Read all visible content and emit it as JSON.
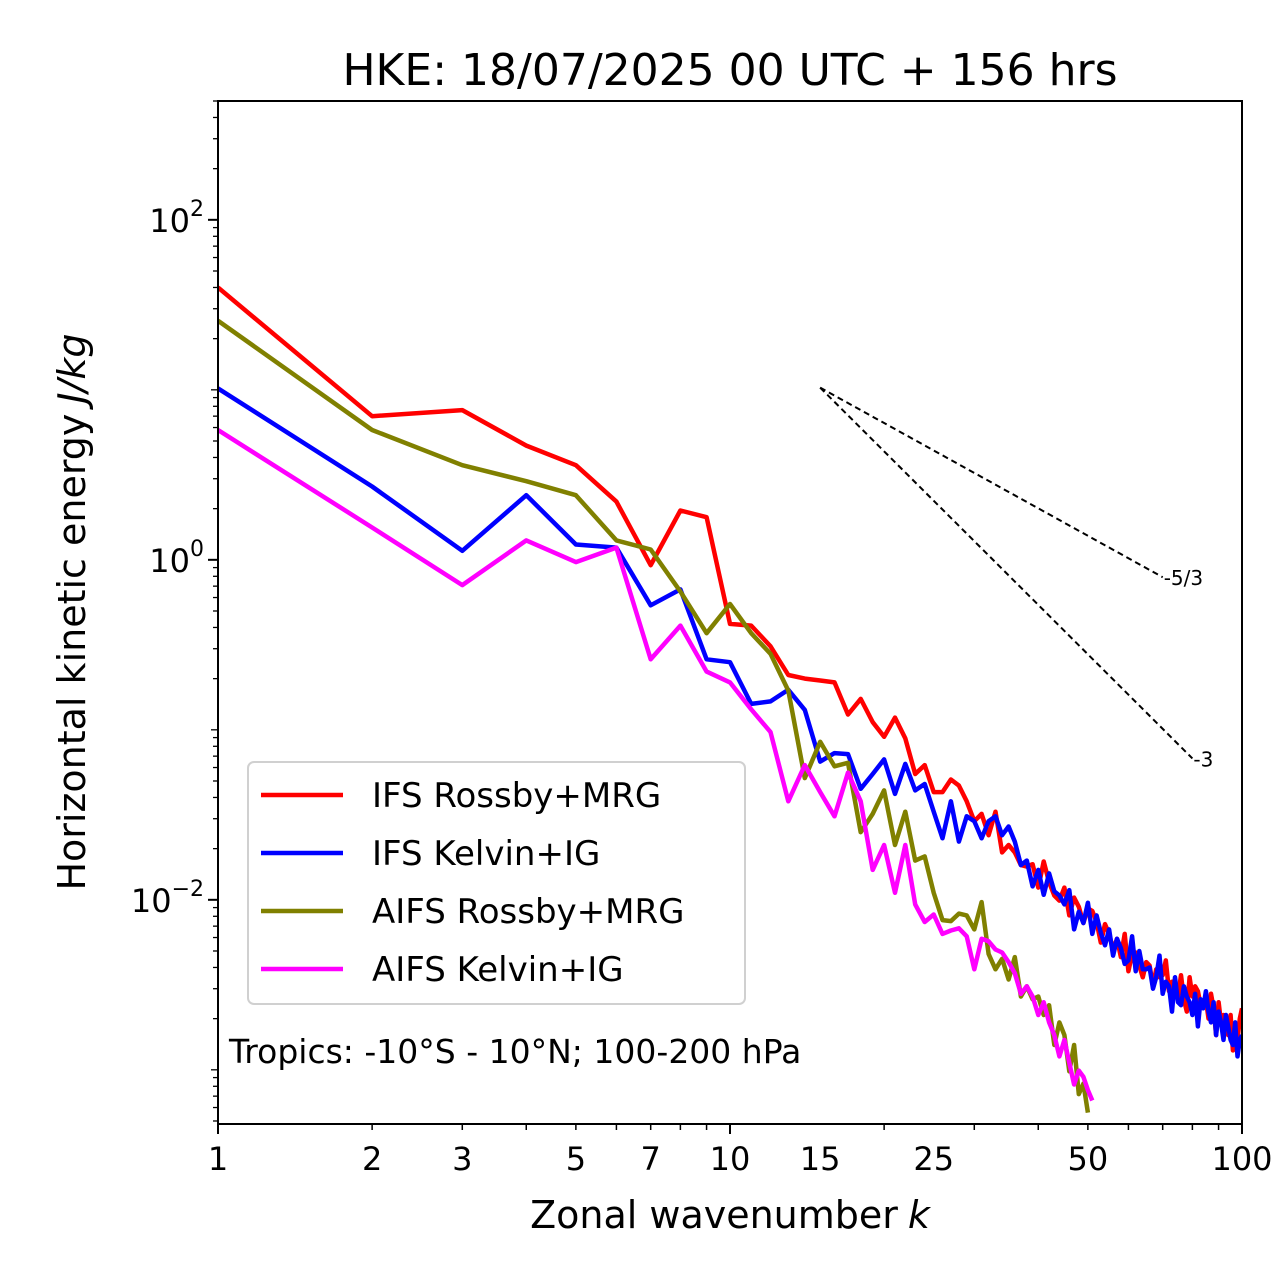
{
  "chart_data": {
    "type": "line",
    "title": "HKE: 18/07/2025 00 UTC + 156 hrs",
    "xlabel": "Zonal wavenumber",
    "xlabel_var": "k",
    "ylabel": "Horizontal kinetic energy",
    "ylabel_units": "J/kg",
    "xscale": "log",
    "yscale": "log",
    "xlim": [
      1,
      100
    ],
    "ylim": [
      0.00048,
      500
    ],
    "x_ticks": [
      {
        "value": 1,
        "label": "1"
      },
      {
        "value": 2,
        "label": "2"
      },
      {
        "value": 3,
        "label": "3"
      },
      {
        "value": 5,
        "label": "5"
      },
      {
        "value": 7,
        "label": "7"
      },
      {
        "value": 10,
        "label": "10"
      },
      {
        "value": 15,
        "label": "15"
      },
      {
        "value": 25,
        "label": "25"
      },
      {
        "value": 50,
        "label": "50"
      },
      {
        "value": 100,
        "label": "100"
      }
    ],
    "y_ticks": [
      {
        "value": 100,
        "mantissa": "10",
        "exp": "2"
      },
      {
        "value": 1,
        "mantissa": "10",
        "exp": "0"
      },
      {
        "value": 0.01,
        "mantissa": "10",
        "exp": "−2"
      }
    ],
    "grid": false,
    "legend_position": "lower-left",
    "annotation": "Tropics: -10°S - 10°N; 100-200 hPa",
    "reference_slopes": [
      {
        "label": "-5/3",
        "slope": -1.6667,
        "x_start": 15,
        "x_end": 70,
        "y_start": 10.3
      },
      {
        "label": "-3",
        "slope": -3,
        "x_start": 15,
        "x_end": 80,
        "y_start": 10.3
      }
    ],
    "series": [
      {
        "name": "IFS Rossby+MRG",
        "color": "#ff0000",
        "x": [
          1,
          2,
          3,
          4,
          5,
          6,
          7,
          8,
          9,
          10,
          11,
          12,
          13,
          14,
          15,
          16,
          17,
          18,
          19,
          20,
          21,
          22,
          23,
          24,
          25,
          26,
          27,
          28,
          29,
          30,
          31,
          32,
          33,
          34,
          35,
          36,
          37,
          38,
          39,
          40,
          41,
          42,
          43,
          44,
          45,
          46,
          47,
          48,
          49,
          50,
          51,
          52,
          53,
          54,
          55,
          56,
          57,
          58,
          59,
          60,
          61,
          62,
          63,
          64,
          65,
          66,
          67,
          68,
          69,
          70,
          71,
          72,
          73,
          74,
          75,
          76,
          77,
          78,
          79,
          80,
          81,
          82,
          83,
          84,
          85,
          86,
          87,
          88,
          89,
          90,
          91,
          92,
          93,
          94,
          95,
          96,
          97,
          98,
          99,
          100
        ],
        "values": [
          40,
          7,
          7.6,
          4.7,
          3.6,
          2.2,
          0.93,
          1.95,
          1.78,
          0.42,
          0.41,
          0.31,
          0.21,
          0.2,
          0.195,
          0.19,
          0.123,
          0.152,
          0.111,
          0.091,
          0.118,
          0.089,
          0.055,
          0.062,
          0.043,
          0.043,
          0.051,
          0.047,
          0.038,
          0.029,
          0.032,
          0.024,
          0.033,
          0.019,
          0.021,
          0.019,
          0.016,
          0.0157,
          0.0162,
          0.0118,
          0.0168,
          0.0127,
          0.0106,
          0.0099,
          0.0118,
          0.0081,
          0.0103,
          0.0091,
          0.0073,
          0.0089,
          0.0086,
          0.0074,
          0.0056,
          0.0072,
          0.0063,
          0.0051,
          0.0059,
          0.0046,
          0.0063,
          0.0038,
          0.0048,
          0.0049,
          0.0041,
          0.0035,
          0.0043,
          0.0041,
          0.0031,
          0.0039,
          0.0035,
          0.0036,
          0.0044,
          0.0029,
          0.0033,
          0.0033,
          0.0027,
          0.0036,
          0.0026,
          0.0022,
          0.0035,
          0.0027,
          0.0031,
          0.0029,
          0.0024,
          0.0024,
          0.0026,
          0.002,
          0.0028,
          0.0023,
          0.0016,
          0.0025,
          0.0019,
          0.0021,
          0.002,
          0.0016,
          0.0021,
          0.0013,
          0.0018,
          0.0015,
          0.002,
          0.0023
        ]
      },
      {
        "name": "IFS Kelvin+IG",
        "color": "#0000ff",
        "x": [
          1,
          2,
          3,
          4,
          5,
          6,
          7,
          8,
          9,
          10,
          11,
          12,
          13,
          14,
          15,
          16,
          17,
          18,
          19,
          20,
          21,
          22,
          23,
          24,
          25,
          26,
          27,
          28,
          29,
          30,
          31,
          32,
          33,
          34,
          35,
          36,
          37,
          38,
          39,
          40,
          41,
          42,
          43,
          44,
          45,
          46,
          47,
          48,
          49,
          50,
          51,
          52,
          53,
          54,
          55,
          56,
          57,
          58,
          59,
          60,
          61,
          62,
          63,
          64,
          65,
          66,
          67,
          68,
          69,
          70,
          71,
          72,
          73,
          74,
          75,
          76,
          77,
          78,
          79,
          80,
          81,
          82,
          83,
          84,
          85,
          86,
          87,
          88,
          89,
          90,
          91,
          92,
          93,
          94,
          95,
          96,
          97,
          98,
          99,
          100
        ],
        "values": [
          10.2,
          2.7,
          1.13,
          2.4,
          1.23,
          1.18,
          0.54,
          0.67,
          0.26,
          0.25,
          0.142,
          0.147,
          0.172,
          0.131,
          0.065,
          0.073,
          0.072,
          0.045,
          0.055,
          0.067,
          0.042,
          0.063,
          0.044,
          0.048,
          0.033,
          0.023,
          0.038,
          0.022,
          0.031,
          0.029,
          0.023,
          0.029,
          0.031,
          0.024,
          0.027,
          0.022,
          0.016,
          0.017,
          0.012,
          0.015,
          0.0107,
          0.0143,
          0.0112,
          0.0106,
          0.0094,
          0.0114,
          0.0067,
          0.0085,
          0.0073,
          0.0096,
          0.0063,
          0.0081,
          0.0064,
          0.0054,
          0.0067,
          0.0047,
          0.0059,
          0.0052,
          0.0042,
          0.0044,
          0.0061,
          0.0038,
          0.005,
          0.0039,
          0.0039,
          0.004,
          0.003,
          0.0035,
          0.0047,
          0.0028,
          0.0033,
          0.0031,
          0.0022,
          0.0035,
          0.0025,
          0.0024,
          0.0031,
          0.0027,
          0.0025,
          0.0021,
          0.0028,
          0.0018,
          0.0026,
          0.0023,
          0.0029,
          0.0022,
          0.0019,
          0.0025,
          0.0016,
          0.0022,
          0.0019,
          0.0015,
          0.0021,
          0.0018,
          0.0015,
          0.0014,
          0.0019,
          0.0012,
          0.0015,
          0.0016
        ]
      },
      {
        "name": "AIFS Rossby+MRG",
        "color": "#808000",
        "x": [
          1,
          2,
          3,
          4,
          5,
          6,
          7,
          8,
          9,
          10,
          11,
          12,
          13,
          14,
          15,
          16,
          17,
          18,
          19,
          20,
          21,
          22,
          23,
          24,
          25,
          26,
          27,
          28,
          29,
          30,
          31,
          32,
          33,
          34,
          35,
          36,
          37,
          38,
          39,
          40,
          41,
          42,
          43,
          44,
          45,
          46,
          47,
          48,
          49,
          50
        ],
        "values": [
          25.5,
          5.8,
          3.6,
          2.9,
          2.4,
          1.3,
          1.15,
          0.65,
          0.37,
          0.55,
          0.37,
          0.28,
          0.17,
          0.052,
          0.085,
          0.061,
          0.064,
          0.025,
          0.032,
          0.044,
          0.021,
          0.033,
          0.017,
          0.018,
          0.011,
          0.0076,
          0.0075,
          0.0083,
          0.0081,
          0.0067,
          0.0097,
          0.0048,
          0.0039,
          0.0045,
          0.0034,
          0.0046,
          0.0027,
          0.0031,
          0.0026,
          0.0027,
          0.0021,
          0.0024,
          0.0014,
          0.0019,
          0.0016,
          0.00098,
          0.0014,
          0.00072,
          0.00083,
          0.00056
        ]
      },
      {
        "name": "AIFS Kelvin+IG",
        "color": "#ff00ff",
        "x": [
          1,
          2,
          3,
          4,
          5,
          6,
          7,
          8,
          9,
          10,
          11,
          12,
          13,
          14,
          15,
          16,
          17,
          18,
          19,
          20,
          21,
          22,
          23,
          24,
          25,
          26,
          27,
          28,
          29,
          30,
          31,
          32,
          33,
          34,
          35,
          36,
          37,
          38,
          39,
          40,
          41,
          42,
          43,
          44,
          45,
          46,
          47,
          48,
          49,
          50,
          51
        ],
        "values": [
          5.8,
          1.55,
          0.71,
          1.3,
          0.97,
          1.18,
          0.26,
          0.41,
          0.22,
          0.19,
          0.132,
          0.097,
          0.038,
          0.062,
          0.043,
          0.031,
          0.056,
          0.038,
          0.015,
          0.021,
          0.011,
          0.021,
          0.0094,
          0.0074,
          0.0082,
          0.0063,
          0.0066,
          0.0068,
          0.0061,
          0.0039,
          0.0059,
          0.0057,
          0.0051,
          0.0049,
          0.0043,
          0.0037,
          0.0028,
          0.0031,
          0.0027,
          0.0021,
          0.0025,
          0.0019,
          0.0016,
          0.0012,
          0.0015,
          0.0011,
          0.00082,
          0.00099,
          0.00091,
          0.00076,
          0.00066
        ]
      }
    ]
  }
}
